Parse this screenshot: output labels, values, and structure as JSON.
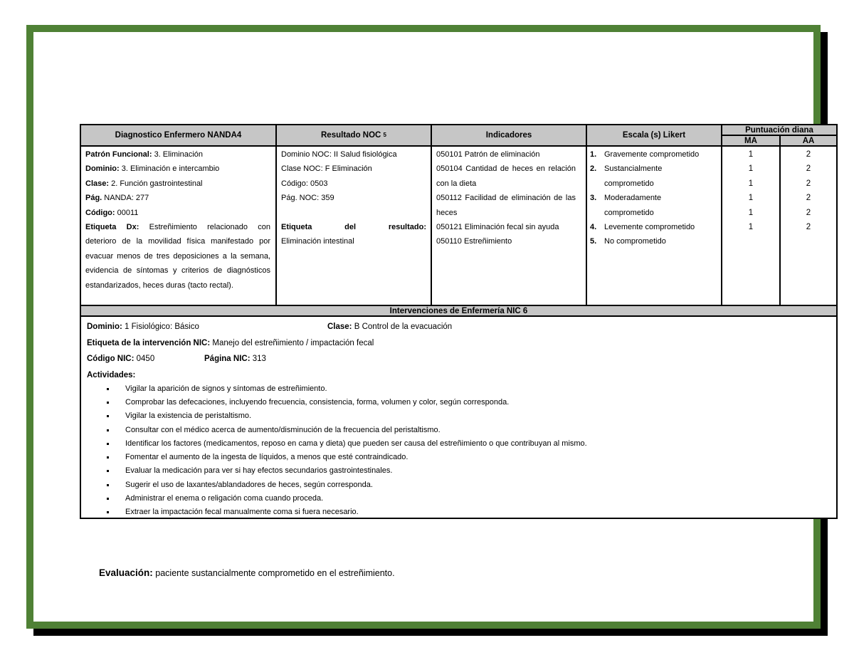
{
  "frame": {
    "border_color": "#4f8135",
    "shadow_color": "#000000"
  },
  "table": {
    "header": {
      "diagnostico": "Diagnostico Enfermero NANDA4",
      "resultado": "Resultado NOC",
      "resultado_sup": "5",
      "indicadores": "Indicadores",
      "escala": "Escala (s) Likert",
      "puntuacion": "Puntuación diana",
      "ma": "MA",
      "aa": "AA"
    },
    "nanda": {
      "lines": [
        {
          "label": "Patrón Funcional:",
          "text": "3. Eliminación"
        },
        {
          "label": "Dominio:",
          "text": "3. Eliminación e intercambio"
        },
        {
          "label": "Clase:",
          "text": "2. Función gastrointestinal"
        },
        {
          "label": "Pág.",
          "text": "NANDA: 277"
        },
        {
          "label": "Código:",
          "text": "00011"
        }
      ],
      "dx_label": "Etiqueta Dx:",
      "dx_text": "Estreñimiento relacionado con deterioro de la movilidad física manifestado por evacuar menos de tres deposiciones a la semana, evidencia de síntomas y criterios de diagnósticos estandarizados, heces duras (tacto rectal)."
    },
    "noc": {
      "lines": [
        "Dominio NOC: II Salud fisiológica",
        "Clase NOC: F Eliminación",
        "Código: 0503",
        "Pág. NOC: 359"
      ],
      "etiqueta": {
        "w1": "Etiqueta",
        "w2": "del",
        "w3": "resultado:"
      },
      "valor": "Eliminación intestinal"
    },
    "indicadores": [
      "050101 Patrón de eliminación",
      "050104 Cantidad de heces en relación con la dieta",
      "050112 Facilidad de eliminación de las heces",
      "050121 Eliminación fecal sin ayuda",
      "050110 Estreñimiento"
    ],
    "likert": [
      {
        "num": "1.",
        "text": "Gravemente comprometido"
      },
      {
        "num": "2.",
        "text": "Sustancialmente comprometido"
      },
      {
        "num": "3.",
        "text": "Moderadamente comprometido"
      },
      {
        "num": "4.",
        "text": "Levemente comprometido"
      },
      {
        "num": "5.",
        "text": "No comprometido"
      }
    ],
    "puntuacion": {
      "ma": [
        "1",
        "1",
        "1",
        "1",
        "1",
        "1"
      ],
      "aa": [
        "2",
        "2",
        "2",
        "2",
        "2",
        "2"
      ]
    },
    "nic": {
      "bar": "Intervenciones de Enfermería NIC 6",
      "dominio_label": "Dominio:",
      "dominio_text": "1 Fisiológico: Básico",
      "clase_label": "Clase:",
      "clase_text": "B Control de la evacuación",
      "etiqueta_label": "Etiqueta de la intervención NIC:",
      "etiqueta_text": "Manejo del estreñimiento / impactación fecal",
      "codigo_label": "Código NIC:",
      "codigo_text": "0450",
      "pagina_label": "Página NIC:",
      "pagina_text": "313",
      "actividades_label": "Actividades:",
      "actividades": [
        "Vigilar la aparición de signos y síntomas de estreñimiento.",
        "Comprobar las defecaciones, incluyendo frecuencia, consistencia, forma, volumen y color, según corresponda.",
        "Vigilar la existencia de peristaltismo.",
        "Consultar con el médico acerca de aumento/disminución de la frecuencia del peristaltismo.",
        "Identificar los factores (medicamentos, reposo en cama y dieta) que pueden ser causa del estreñimiento o que contribuyan al mismo.",
        "Fomentar el aumento de la ingesta de líquidos, a menos que esté contraindicado.",
        "Evaluar la medicación para ver si hay efectos secundarios gastrointestinales.",
        "Sugerir el uso de laxantes/ablandadores de heces, según corresponda.",
        "Administrar el enema o religación coma cuando proceda.",
        "Extraer la impactación fecal manualmente coma si fuera necesario."
      ]
    }
  },
  "evaluacion": {
    "label": "Evaluación:",
    "text": "paciente sustancialmente comprometido en el estreñimiento."
  }
}
